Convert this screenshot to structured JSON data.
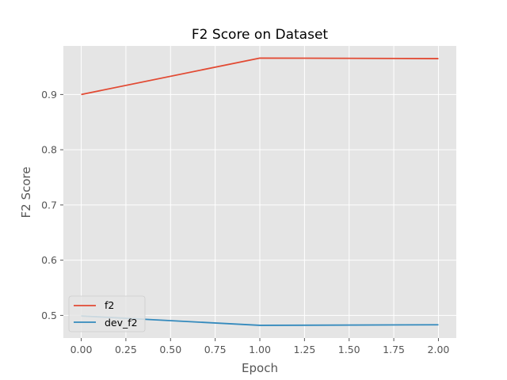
{
  "chart_data": {
    "type": "line",
    "title": "F2 Score on Dataset",
    "xlabel": "Epoch",
    "ylabel": "F2 Score",
    "x": [
      0,
      1,
      2
    ],
    "series": [
      {
        "name": "f2",
        "values": [
          0.9,
          0.966,
          0.965
        ],
        "color": "#e24a33"
      },
      {
        "name": "dev_f2",
        "values": [
          0.499,
          0.482,
          0.483
        ],
        "color": "#348abd"
      }
    ],
    "xlim": [
      -0.1,
      2.1
    ],
    "ylim": [
      0.459,
      0.988
    ],
    "xticks": [
      "0.00",
      "0.25",
      "0.50",
      "0.75",
      "1.00",
      "1.25",
      "1.50",
      "1.75",
      "2.00"
    ],
    "yticks": [
      "0.5",
      "0.6",
      "0.7",
      "0.8",
      "0.9"
    ],
    "grid": true,
    "legend": "lower-left",
    "style": {
      "plot_bg": "#e5e5e5",
      "grid_color": "#ffffff"
    }
  }
}
